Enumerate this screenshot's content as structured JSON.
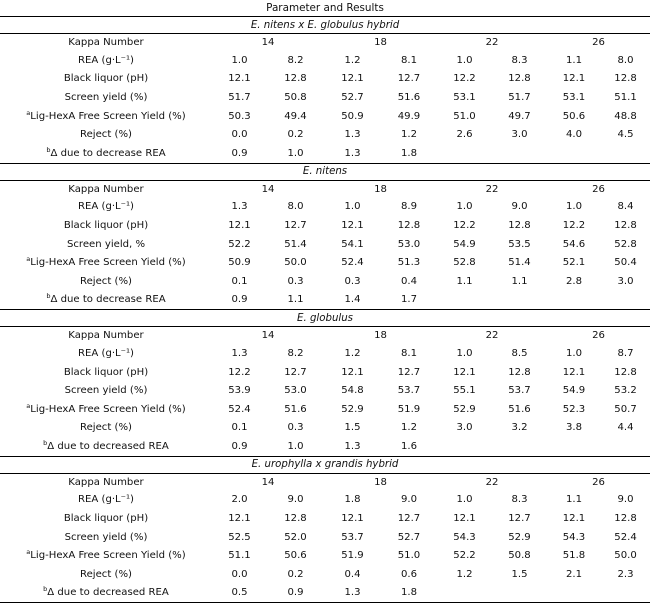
{
  "table_title": "Parameter and Results",
  "sections": [
    {
      "title": "E. nitens x E. globulus hybrid",
      "kappa_label": "Kappa Number",
      "kappa_values": [
        "14",
        "18",
        "22",
        "26"
      ],
      "rows": [
        {
          "label": "REA (g·L⁻¹)",
          "values": [
            "1.0",
            "8.2",
            "1.2",
            "8.1",
            "1.0",
            "8.3",
            "1.1",
            "8.0"
          ]
        },
        {
          "label": "Black liquor (pH)",
          "values": [
            "12.1",
            "12.8",
            "12.1",
            "12.7",
            "12.2",
            "12.8",
            "12.1",
            "12.8"
          ]
        },
        {
          "label": "Screen yield (%)",
          "values": [
            "51.7",
            "50.8",
            "52.7",
            "51.6",
            "53.1",
            "51.7",
            "53.1",
            "51.1"
          ]
        },
        {
          "sup": "a",
          "label": "Lig-HexA Free Screen Yield (%)",
          "values": [
            "50.3",
            "49.4",
            "50.9",
            "49.9",
            "51.0",
            "49.7",
            "50.6",
            "48.8"
          ]
        },
        {
          "label": "Reject (%)",
          "values": [
            "0.0",
            "0.2",
            "1.3",
            "1.2",
            "2.6",
            "3.0",
            "4.0",
            "4.5"
          ]
        },
        {
          "sup": "b",
          "label": "Δ due to decrease REA",
          "values": [
            "0.9",
            "1.0",
            "1.3",
            "1.8"
          ]
        }
      ]
    },
    {
      "title": "E. nitens",
      "kappa_label": "Kappa Number",
      "kappa_values": [
        "14",
        "18",
        "22",
        "26"
      ],
      "rows": [
        {
          "label": "REA (g·L⁻¹)",
          "values": [
            "1.3",
            "8.0",
            "1.0",
            "8.9",
            "1.0",
            "9.0",
            "1.0",
            "8.4"
          ]
        },
        {
          "label": "Black liquor (pH)",
          "values": [
            "12.1",
            "12.7",
            "12.1",
            "12.8",
            "12.2",
            "12.8",
            "12.2",
            "12.8"
          ]
        },
        {
          "label": "Screen yield, %",
          "values": [
            "52.2",
            "51.4",
            "54.1",
            "53.0",
            "54.9",
            "53.5",
            "54.6",
            "52.8"
          ]
        },
        {
          "sup": "a",
          "label": "Lig-HexA Free Screen Yield (%)",
          "values": [
            "50.9",
            "50.0",
            "52.4",
            "51.3",
            "52.8",
            "51.4",
            "52.1",
            "50.4"
          ]
        },
        {
          "label": "Reject (%)",
          "values": [
            "0.1",
            "0.3",
            "0.3",
            "0.4",
            "1.1",
            "1.1",
            "2.8",
            "3.0"
          ]
        },
        {
          "sup": "b",
          "label": "Δ due to decrease REA",
          "values": [
            "0.9",
            "1.1",
            "1.4",
            "1.7"
          ]
        }
      ]
    },
    {
      "title": "E. globulus",
      "kappa_label": "Kappa Number",
      "kappa_values": [
        "14",
        "18",
        "22",
        "26"
      ],
      "rows": [
        {
          "label": "REA (g·L⁻¹)",
          "values": [
            "1.3",
            "8.2",
            "1.2",
            "8.1",
            "1.0",
            "8.5",
            "1.0",
            "8.7"
          ]
        },
        {
          "label": "Black liquor (pH)",
          "values": [
            "12.2",
            "12.7",
            "12.1",
            "12.7",
            "12.1",
            "12.8",
            "12.1",
            "12.8"
          ]
        },
        {
          "label": "Screen yield (%)",
          "values": [
            "53.9",
            "53.0",
            "54.8",
            "53.7",
            "55.1",
            "53.7",
            "54.9",
            "53.2"
          ]
        },
        {
          "sup": "a",
          "label": "Lig-HexA Free Screen Yield (%)",
          "values": [
            "52.4",
            "51.6",
            "52.9",
            "51.9",
            "52.9",
            "51.6",
            "52.3",
            "50.7"
          ]
        },
        {
          "label": "Reject (%)",
          "values": [
            "0.1",
            "0.3",
            "1.5",
            "1.2",
            "3.0",
            "3.2",
            "3.8",
            "4.4"
          ]
        },
        {
          "sup": "b",
          "label": "Δ due to decreased REA",
          "values": [
            "0.9",
            "1.0",
            "1.3",
            "1.6"
          ]
        }
      ]
    },
    {
      "title": "E. urophylla x grandis hybrid",
      "kappa_label": "Kappa Number",
      "kappa_values": [
        "14",
        "18",
        "22",
        "26"
      ],
      "rows": [
        {
          "label": "REA (g·L⁻¹)",
          "values": [
            "2.0",
            "9.0",
            "1.8",
            "9.0",
            "1.0",
            "8.3",
            "1.1",
            "9.0"
          ]
        },
        {
          "label": "Black liquor (pH)",
          "values": [
            "12.1",
            "12.8",
            "12.1",
            "12.7",
            "12.1",
            "12.7",
            "12.1",
            "12.8"
          ]
        },
        {
          "label": "Screen yield (%)",
          "values": [
            "52.5",
            "52.0",
            "53.7",
            "52.7",
            "54.3",
            "52.9",
            "54.3",
            "52.4"
          ]
        },
        {
          "sup": "a",
          "label": "Lig-HexA Free Screen Yield (%)",
          "values": [
            "51.1",
            "50.6",
            "51.9",
            "51.0",
            "52.2",
            "50.8",
            "51.8",
            "50.0"
          ]
        },
        {
          "label": "Reject (%)",
          "values": [
            "0.0",
            "0.2",
            "0.4",
            "0.6",
            "1.2",
            "1.5",
            "2.1",
            "2.3"
          ]
        },
        {
          "sup": "b",
          "label": "Δ due to decreased REA",
          "values": [
            "0.5",
            "0.9",
            "1.3",
            "1.8"
          ]
        }
      ]
    }
  ]
}
